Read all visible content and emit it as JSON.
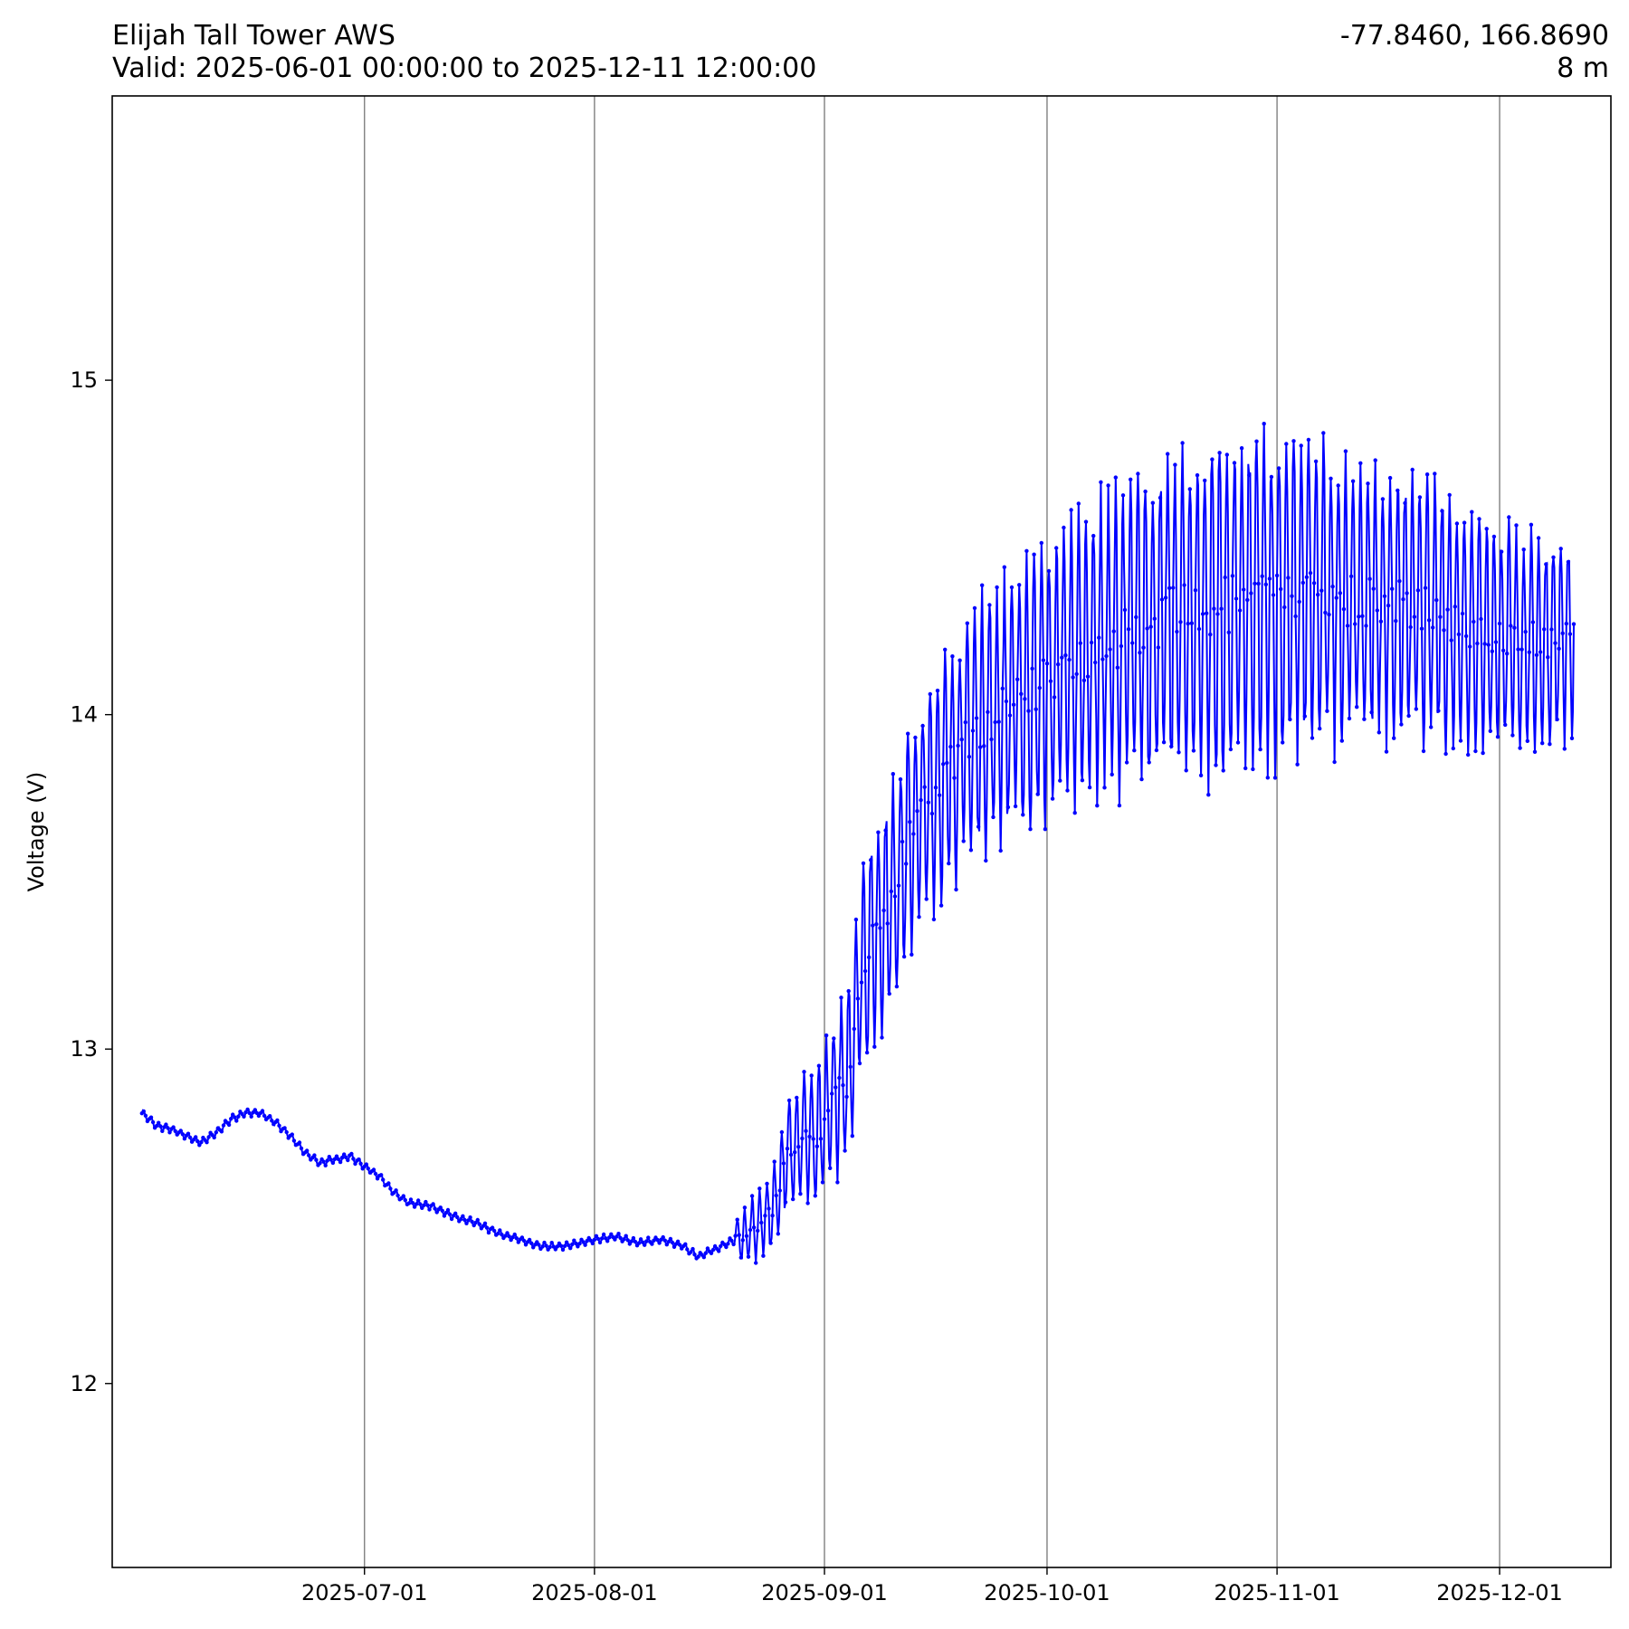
{
  "header": {
    "title": "Elijah Tall Tower AWS",
    "subtitle": "Valid: 2025-06-01 00:00:00 to 2025-12-11 12:00:00",
    "coords": "-77.8460, 166.8690",
    "elevation": "8 m"
  },
  "chart_data": {
    "type": "line",
    "ylabel": "Voltage (V)",
    "xlabel": "",
    "ylim": [
      11.45,
      15.85
    ],
    "xlim": [
      "2025-05-28",
      "2025-12-16"
    ],
    "y_ticks": [
      12,
      13,
      14,
      15
    ],
    "x_ticks": [
      "2025-07-01",
      "2025-08-01",
      "2025-09-01",
      "2025-10-01",
      "2025-11-01",
      "2025-12-01"
    ],
    "grid": "vertical",
    "line_color": "#0000ff",
    "marker": "dot",
    "series": [
      {
        "points": [
          [
            "2025-06-01",
            12.81
          ],
          [
            "2025-06-03",
            12.77
          ],
          [
            "2025-06-05",
            12.76
          ],
          [
            "2025-06-07",
            12.74
          ],
          [
            "2025-06-09",
            12.72
          ],
          [
            "2025-06-11",
            12.75
          ],
          [
            "2025-06-13",
            12.79
          ],
          [
            "2025-06-15",
            12.81
          ],
          [
            "2025-06-17",
            12.81
          ],
          [
            "2025-06-19",
            12.78
          ],
          [
            "2025-06-21",
            12.74
          ],
          [
            "2025-06-23",
            12.69
          ],
          [
            "2025-06-25",
            12.66
          ],
          [
            "2025-06-27",
            12.67
          ],
          [
            "2025-06-29",
            12.68
          ],
          [
            "2025-07-01",
            12.65
          ],
          [
            "2025-07-03",
            12.62
          ],
          [
            "2025-07-05",
            12.57
          ],
          [
            "2025-07-07",
            12.54
          ],
          [
            "2025-07-10",
            12.53
          ],
          [
            "2025-07-13",
            12.5
          ],
          [
            "2025-07-16",
            12.48
          ],
          [
            "2025-07-19",
            12.45
          ],
          [
            "2025-07-22",
            12.43
          ],
          [
            "2025-07-25",
            12.41
          ],
          [
            "2025-07-28",
            12.41
          ],
          [
            "2025-08-01",
            12.43
          ],
          [
            "2025-08-04",
            12.44
          ],
          [
            "2025-08-07",
            12.42
          ],
          [
            "2025-08-10",
            12.43
          ],
          [
            "2025-08-13",
            12.41
          ],
          [
            "2025-08-15",
            12.38
          ],
          [
            "2025-08-17",
            12.4
          ],
          [
            "2025-08-19",
            12.42
          ],
          [
            "2025-08-21",
            12.44
          ],
          [
            "2025-08-23",
            12.47
          ],
          [
            "2025-08-25",
            12.52
          ],
          [
            "2025-08-27",
            12.68
          ],
          [
            "2025-08-29",
            12.75
          ],
          [
            "2025-08-31",
            12.72
          ],
          [
            "2025-09-02",
            12.85
          ],
          [
            "2025-09-04",
            12.9
          ],
          [
            "2025-09-06",
            13.25
          ],
          [
            "2025-09-08",
            13.35
          ],
          [
            "2025-09-10",
            13.45
          ],
          [
            "2025-09-12",
            13.6
          ],
          [
            "2025-09-15",
            13.75
          ],
          [
            "2025-09-18",
            13.85
          ],
          [
            "2025-09-21",
            13.95
          ],
          [
            "2025-09-24",
            14.0
          ],
          [
            "2025-09-27",
            14.05
          ],
          [
            "2025-10-01",
            14.1
          ],
          [
            "2025-10-04",
            14.15
          ],
          [
            "2025-10-07",
            14.2
          ],
          [
            "2025-10-10",
            14.22
          ],
          [
            "2025-10-13",
            14.25
          ],
          [
            "2025-10-16",
            14.28
          ],
          [
            "2025-10-19",
            14.3
          ],
          [
            "2025-10-22",
            14.3
          ],
          [
            "2025-10-25",
            14.32
          ],
          [
            "2025-10-28",
            14.33
          ],
          [
            "2025-11-01",
            14.35
          ],
          [
            "2025-11-05",
            14.36
          ],
          [
            "2025-11-09",
            14.35
          ],
          [
            "2025-11-13",
            14.34
          ],
          [
            "2025-11-17",
            14.33
          ],
          [
            "2025-11-21",
            14.31
          ],
          [
            "2025-11-25",
            14.28
          ],
          [
            "2025-11-29",
            14.25
          ],
          [
            "2025-12-03",
            14.22
          ],
          [
            "2025-12-07",
            14.22
          ],
          [
            "2025-12-11",
            14.22
          ]
        ]
      }
    ]
  }
}
